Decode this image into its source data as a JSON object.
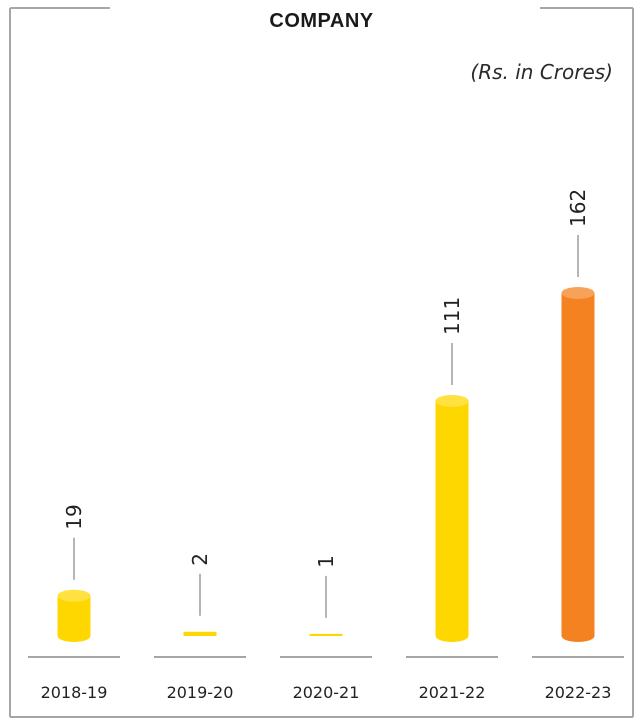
{
  "chart_data": {
    "type": "bar",
    "title": "COMPANY",
    "subtitle": "(Rs. in Crores)",
    "categories": [
      "2018-19",
      "2019-20",
      "2020-21",
      "2021-22",
      "2022-23"
    ],
    "values": [
      19,
      2,
      1,
      111,
      162
    ],
    "value_labels": [
      "19",
      "2",
      "1",
      "111",
      "162"
    ],
    "colors": [
      "#FFD700",
      "#FFD700",
      "#FFD700",
      "#FFD700",
      "#F58220"
    ],
    "ylim": [
      0,
      162
    ],
    "grid": false,
    "legend": "none",
    "xlabel": "",
    "ylabel": ""
  }
}
